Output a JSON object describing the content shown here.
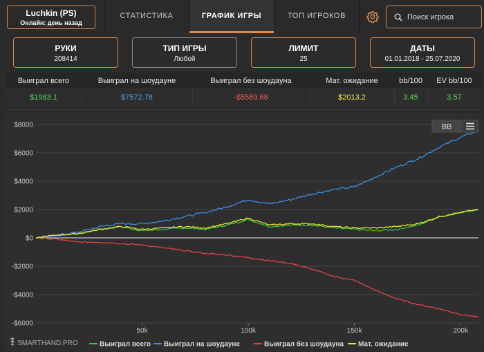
{
  "header": {
    "player_name": "Luchkin (PS)",
    "player_status": "Онлайн: день назад",
    "tabs": [
      {
        "label": "СТАТИСТИКА",
        "active": false
      },
      {
        "label": "ГРАФИК ИГРЫ",
        "active": true
      },
      {
        "label": "ТОП ИГРОКОВ",
        "active": false
      }
    ],
    "settings_icon": "gear-icon",
    "search_placeholder": "Поиск игрока",
    "search_icon": "search-icon"
  },
  "filters": [
    {
      "title": "РУКИ",
      "value": "208414"
    },
    {
      "title": "ТИП ИГРЫ",
      "value": "Любой"
    },
    {
      "title": "ЛИМИТ",
      "value": "25"
    },
    {
      "title": "ДАТЫ",
      "value": "01.01.2018 - 25.07.2020"
    }
  ],
  "stats": {
    "headers": [
      "Выиграл всего",
      "Выиграл на шоудауне",
      "Выиграл без шоудауна",
      "Мат. ожидание",
      "bb/100",
      "EV bb/100"
    ],
    "values": [
      "$1983.1",
      "$7572.78",
      "-$5589.68",
      "$2013.2",
      "3.45",
      "3.57"
    ],
    "colors": [
      "#5cd65c",
      "#4a9ee6",
      "#f05a5a",
      "#f0f040",
      "#5cd65c",
      "#5cd65c"
    ]
  },
  "chart_controls": {
    "bb_label": "BB",
    "menu_icon": "hamburger-menu-icon"
  },
  "brand": "SMARTHAND.PRO",
  "chart_data": {
    "type": "line",
    "x_unit": "hands",
    "xlim": [
      0,
      208414
    ],
    "ylim": [
      -6000,
      8000
    ],
    "x_ticks": [
      {
        "value": 50000,
        "label": "50k"
      },
      {
        "value": 100000,
        "label": "100k"
      },
      {
        "value": 150000,
        "label": "150k"
      },
      {
        "value": 200000,
        "label": "200k"
      }
    ],
    "y_ticks": [
      {
        "value": 8000,
        "label": "$8000"
      },
      {
        "value": 6000,
        "label": "$6000"
      },
      {
        "value": 4000,
        "label": "$4000"
      },
      {
        "value": 2000,
        "label": "$2000"
      },
      {
        "value": 0,
        "label": "$0"
      },
      {
        "value": -2000,
        "label": "-$2000"
      },
      {
        "value": -4000,
        "label": "-$4000"
      },
      {
        "value": -6000,
        "label": "-$6000"
      }
    ],
    "grid": "horizontal",
    "legend_position": "bottom",
    "x": [
      0,
      10000,
      20000,
      30000,
      40000,
      50000,
      60000,
      70000,
      80000,
      90000,
      100000,
      110000,
      120000,
      130000,
      140000,
      150000,
      160000,
      170000,
      180000,
      190000,
      200000,
      208414
    ],
    "series": [
      {
        "name": "Выиграл всего",
        "color": "#3cc43c",
        "values": [
          0,
          200,
          300,
          600,
          800,
          500,
          600,
          700,
          600,
          900,
          1300,
          800,
          900,
          900,
          700,
          600,
          500,
          600,
          900,
          1500,
          1800,
          1983
        ]
      },
      {
        "name": "Выиграл на шоудауне",
        "color": "#3a8ee6",
        "values": [
          0,
          200,
          400,
          800,
          1000,
          1000,
          1200,
          1500,
          1800,
          2200,
          2700,
          2400,
          2700,
          3100,
          3400,
          3600,
          4300,
          5000,
          5600,
          6400,
          7100,
          7573
        ]
      },
      {
        "name": "Выиграл без шоудауна",
        "color": "#e24444",
        "values": [
          0,
          -100,
          -300,
          -300,
          -400,
          -500,
          -700,
          -900,
          -1100,
          -1200,
          -1400,
          -1600,
          -1800,
          -2200,
          -2700,
          -3000,
          -3700,
          -4300,
          -4700,
          -5000,
          -5400,
          -5590
        ]
      },
      {
        "name": "Мат. ожидание",
        "color": "#e8e830",
        "values": [
          0,
          200,
          300,
          600,
          800,
          600,
          700,
          800,
          700,
          1000,
          1400,
          900,
          1000,
          1000,
          800,
          700,
          700,
          800,
          1000,
          1500,
          1800,
          2013
        ]
      }
    ]
  }
}
